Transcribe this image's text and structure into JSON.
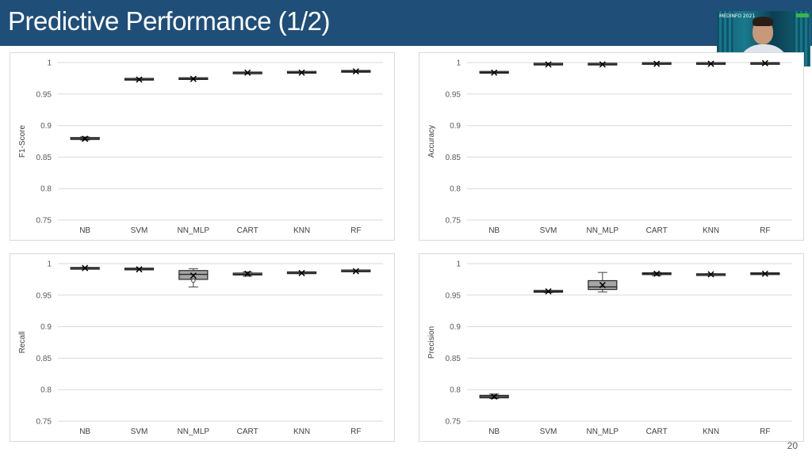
{
  "slide": {
    "title": "Predictive Performance (1/2)",
    "page_number": "20",
    "title_bar_color": "#1f4e79"
  },
  "video": {
    "overlay_text": "MEDINFO 2021",
    "icon": "presenter-video-icon"
  },
  "chart_data": [
    {
      "type": "box",
      "ylabel": "F1-Score",
      "categories": [
        "NB",
        "SVM",
        "NN_MLP",
        "CART",
        "KNN",
        "RF"
      ],
      "ylim": [
        0.75,
        1
      ],
      "yticks": [
        "0.75",
        "0.8",
        "0.85",
        "0.9",
        "0.95",
        "1"
      ],
      "grid": true,
      "boxes": [
        {
          "min": 0.877,
          "q1": 0.878,
          "median": 0.879,
          "q3": 0.881,
          "max": 0.882,
          "mean": 0.879
        },
        {
          "min": 0.972,
          "q1": 0.973,
          "median": 0.973,
          "q3": 0.974,
          "max": 0.975,
          "mean": 0.973
        },
        {
          "min": 0.973,
          "q1": 0.974,
          "median": 0.974,
          "q3": 0.975,
          "max": 0.975,
          "mean": 0.974
        },
        {
          "min": 0.983,
          "q1": 0.983,
          "median": 0.984,
          "q3": 0.984,
          "max": 0.985,
          "mean": 0.984
        },
        {
          "min": 0.983,
          "q1": 0.984,
          "median": 0.984,
          "q3": 0.985,
          "max": 0.985,
          "mean": 0.984
        },
        {
          "min": 0.985,
          "q1": 0.986,
          "median": 0.986,
          "q3": 0.986,
          "max": 0.987,
          "mean": 0.986
        }
      ]
    },
    {
      "type": "box",
      "ylabel": "Accuracy",
      "categories": [
        "NB",
        "SVM",
        "NN_MLP",
        "CART",
        "KNN",
        "RF"
      ],
      "ylim": [
        0.75,
        1
      ],
      "yticks": [
        "0.75",
        "0.8",
        "0.85",
        "0.9",
        "0.95",
        "1"
      ],
      "grid": true,
      "boxes": [
        {
          "min": 0.983,
          "q1": 0.984,
          "median": 0.984,
          "q3": 0.985,
          "max": 0.985,
          "mean": 0.984
        },
        {
          "min": 0.997,
          "q1": 0.997,
          "median": 0.997,
          "q3": 0.998,
          "max": 0.998,
          "mean": 0.997
        },
        {
          "min": 0.997,
          "q1": 0.997,
          "median": 0.997,
          "q3": 0.998,
          "max": 0.998,
          "mean": 0.997
        },
        {
          "min": 0.998,
          "q1": 0.998,
          "median": 0.998,
          "q3": 0.999,
          "max": 0.999,
          "mean": 0.998
        },
        {
          "min": 0.998,
          "q1": 0.998,
          "median": 0.998,
          "q3": 0.999,
          "max": 0.999,
          "mean": 0.998
        },
        {
          "min": 0.998,
          "q1": 0.998,
          "median": 0.999,
          "q3": 0.999,
          "max": 0.999,
          "mean": 0.999
        }
      ]
    },
    {
      "type": "box",
      "ylabel": "Recall",
      "categories": [
        "NB",
        "SVM",
        "NN_MLP",
        "CART",
        "KNN",
        "RF"
      ],
      "ylim": [
        0.75,
        1
      ],
      "yticks": [
        "0.75",
        "0.8",
        "0.85",
        "0.9",
        "0.95",
        "1"
      ],
      "grid": true,
      "boxes": [
        {
          "min": 0.992,
          "q1": 0.992,
          "median": 0.993,
          "q3": 0.993,
          "max": 0.994,
          "mean": 0.993
        },
        {
          "min": 0.99,
          "q1": 0.991,
          "median": 0.991,
          "q3": 0.992,
          "max": 0.992,
          "mean": 0.991
        },
        {
          "min": 0.963,
          "q1": 0.975,
          "median": 0.983,
          "q3": 0.989,
          "max": 0.992,
          "mean": 0.981
        },
        {
          "min": 0.98,
          "q1": 0.982,
          "median": 0.983,
          "q3": 0.985,
          "max": 0.987,
          "mean": 0.984
        },
        {
          "min": 0.984,
          "q1": 0.985,
          "median": 0.985,
          "q3": 0.986,
          "max": 0.986,
          "mean": 0.985
        },
        {
          "min": 0.987,
          "q1": 0.988,
          "median": 0.988,
          "q3": 0.989,
          "max": 0.989,
          "mean": 0.988
        }
      ],
      "outliers": [
        [],
        [],
        [
          0.973
        ],
        [],
        [],
        []
      ]
    },
    {
      "type": "box",
      "ylabel": "Precision",
      "categories": [
        "NB",
        "SVM",
        "NN_MLP",
        "CART",
        "KNN",
        "RF"
      ],
      "ylim": [
        0.75,
        1
      ],
      "yticks": [
        "0.75",
        "0.8",
        "0.85",
        "0.9",
        "0.95",
        "1"
      ],
      "grid": true,
      "boxes": [
        {
          "min": 0.786,
          "q1": 0.787,
          "median": 0.789,
          "q3": 0.791,
          "max": 0.793,
          "mean": 0.789
        },
        {
          "min": 0.954,
          "q1": 0.955,
          "median": 0.956,
          "q3": 0.957,
          "max": 0.957,
          "mean": 0.956
        },
        {
          "min": 0.955,
          "q1": 0.959,
          "median": 0.963,
          "q3": 0.973,
          "max": 0.986,
          "mean": 0.966
        },
        {
          "min": 0.981,
          "q1": 0.983,
          "median": 0.984,
          "q3": 0.985,
          "max": 0.986,
          "mean": 0.984
        },
        {
          "min": 0.982,
          "q1": 0.982,
          "median": 0.983,
          "q3": 0.983,
          "max": 0.984,
          "mean": 0.983
        },
        {
          "min": 0.983,
          "q1": 0.984,
          "median": 0.984,
          "q3": 0.984,
          "max": 0.985,
          "mean": 0.984
        }
      ]
    }
  ]
}
